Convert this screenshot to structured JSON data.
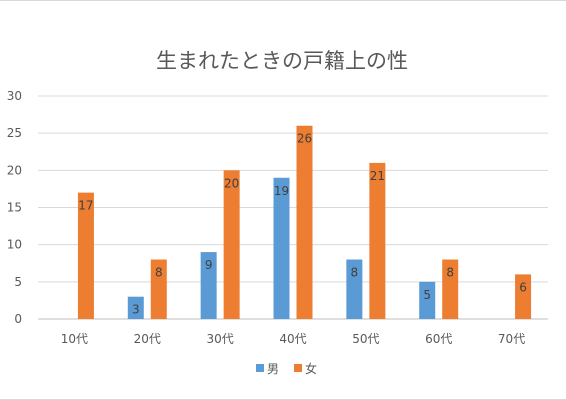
{
  "chart_data": {
    "type": "bar",
    "title": "生まれたときの戸籍上の性",
    "xlabel": "",
    "ylabel": "",
    "categories": [
      "10代",
      "20代",
      "30代",
      "40代",
      "50代",
      "60代",
      "70代"
    ],
    "series": [
      {
        "name": "男",
        "color": "#5b9bd5",
        "values": [
          null,
          3,
          9,
          19,
          8,
          5,
          null
        ]
      },
      {
        "name": "女",
        "color": "#ed7d31",
        "values": [
          17,
          8,
          20,
          26,
          21,
          8,
          6
        ]
      }
    ],
    "ylim": [
      0,
      30
    ],
    "yticks": [
      0,
      5,
      10,
      15,
      20,
      25,
      30
    ],
    "grid": true,
    "legend_position": "bottom",
    "data_labels": true
  }
}
